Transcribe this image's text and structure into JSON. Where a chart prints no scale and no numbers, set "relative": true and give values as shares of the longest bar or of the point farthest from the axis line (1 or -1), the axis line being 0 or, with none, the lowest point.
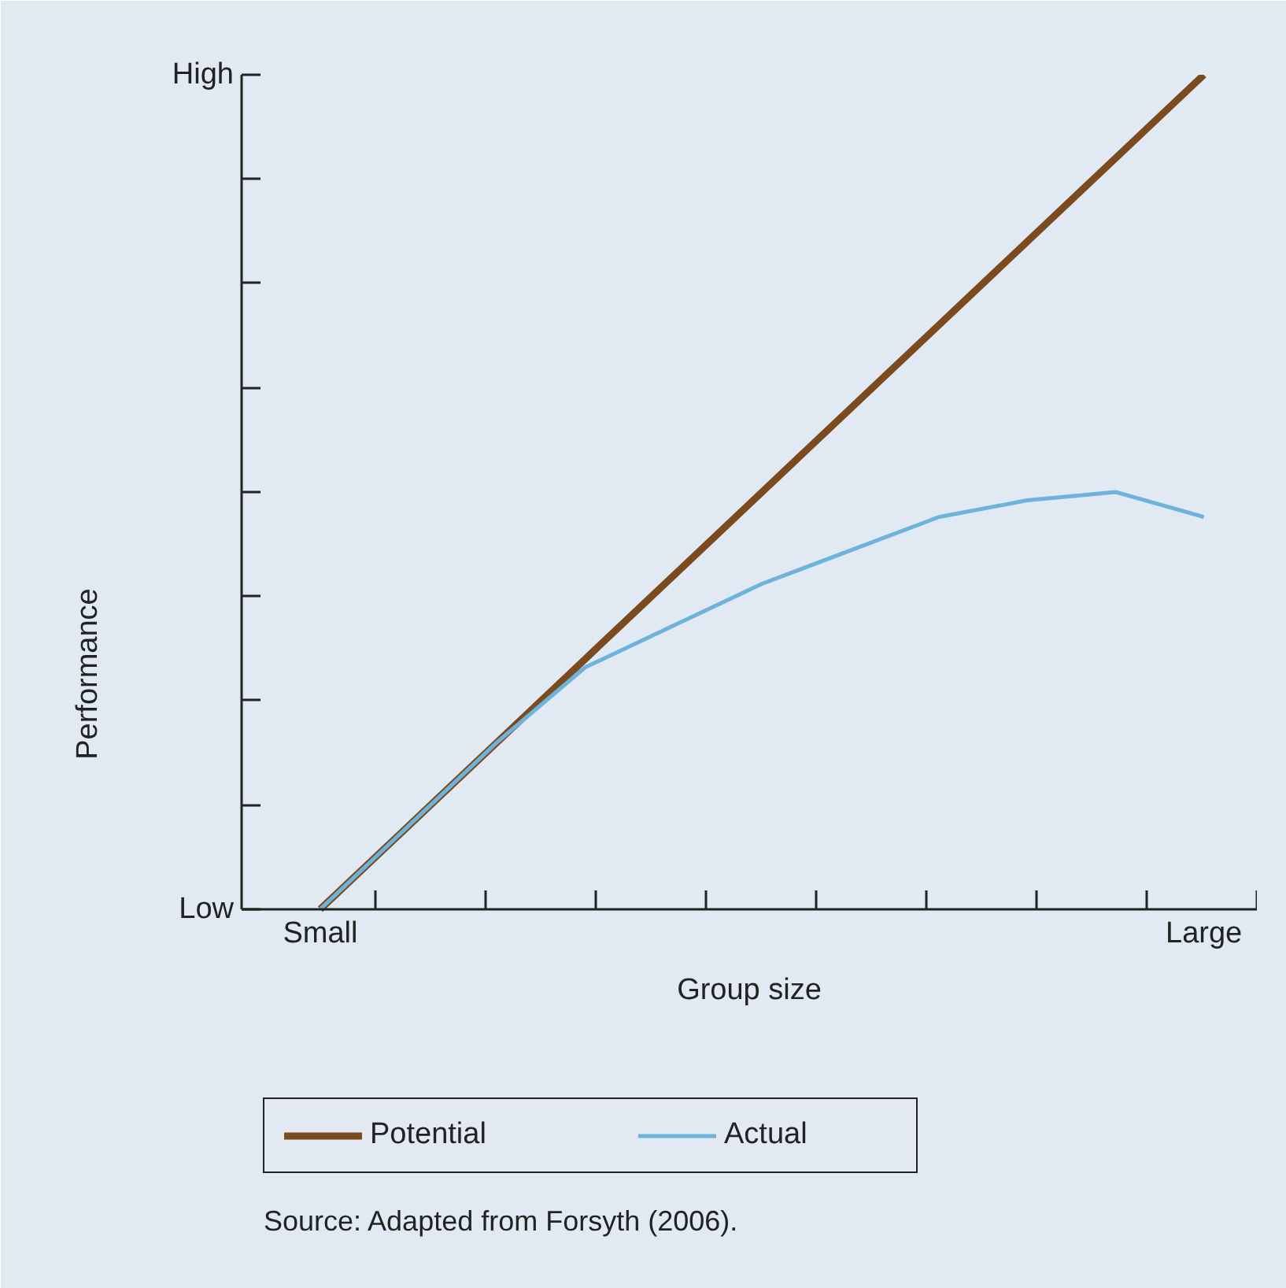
{
  "chart_data": {
    "type": "line",
    "relative": true,
    "xlabel": "Group size",
    "ylabel": "Performance",
    "categories": [
      "Small",
      null,
      null,
      null,
      null,
      null,
      null,
      null,
      null,
      null,
      "Large"
    ],
    "series": [
      {
        "name": "Potential",
        "color": "#7b4a1e",
        "values": [
          0,
          0.1,
          0.2,
          0.3,
          0.4,
          0.5,
          0.6,
          0.7,
          0.8,
          0.9,
          1
        ]
      },
      {
        "name": "Actual",
        "color": "#6db3dc",
        "values": [
          0,
          0.1,
          0.2,
          0.29,
          0.34,
          0.39,
          0.43,
          0.47,
          0.49,
          0.5,
          0.47
        ]
      }
    ],
    "grid": false,
    "legend": "bottom",
    "annotations": [
      "Low",
      "High",
      "Source: Adapted from Forsyth (2006)."
    ]
  }
}
